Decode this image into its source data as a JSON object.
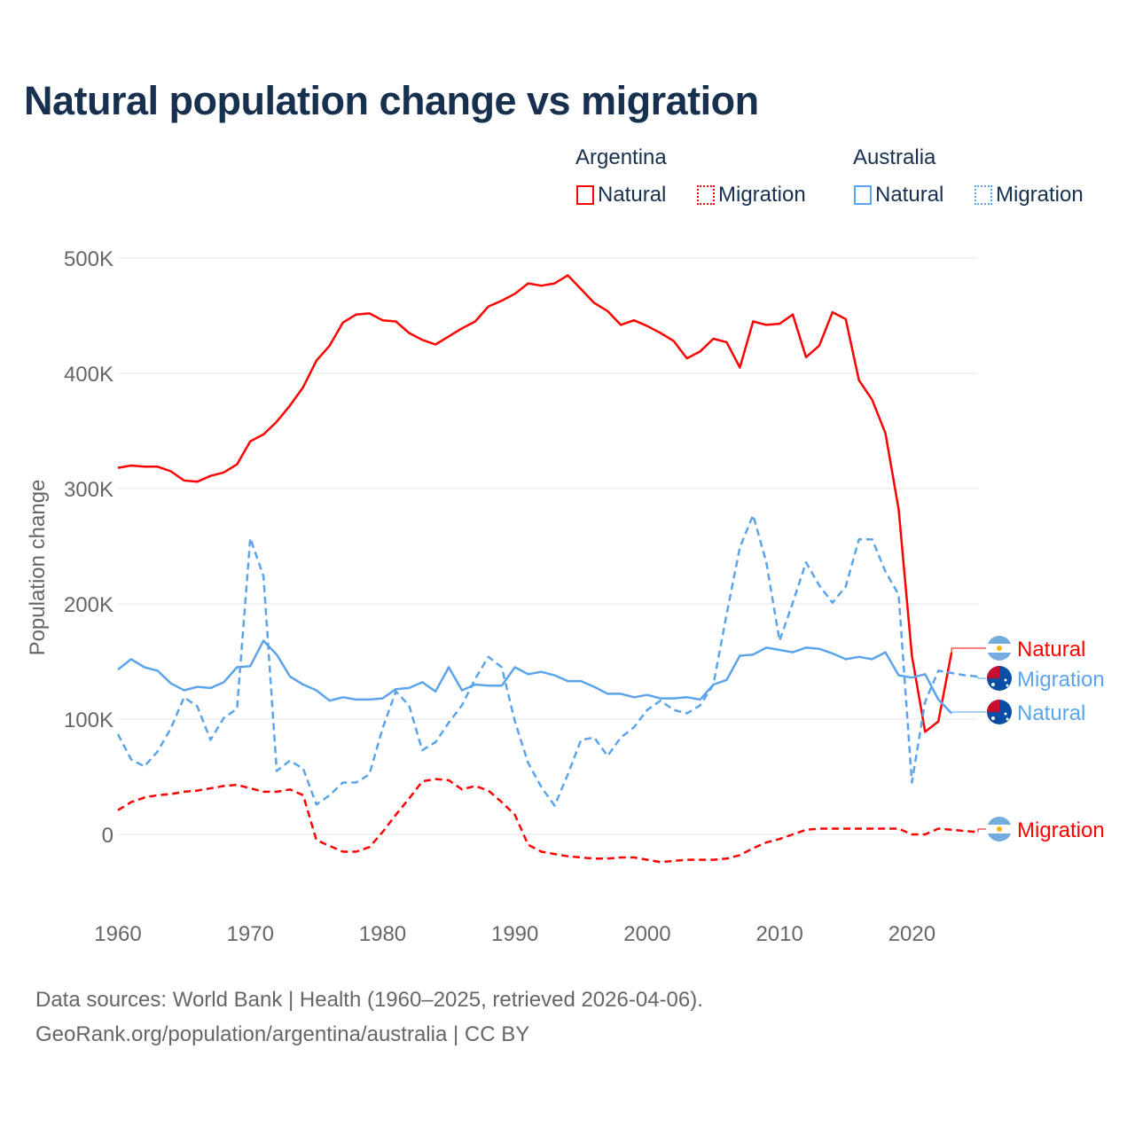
{
  "title": "Natural population change vs migration",
  "legend": {
    "groups": [
      {
        "name": "Argentina",
        "items": [
          "Natural",
          "Migration"
        ]
      },
      {
        "name": "Australia",
        "items": [
          "Natural",
          "Migration"
        ]
      }
    ]
  },
  "colors": {
    "argentina": "#ff0000",
    "australia": "#5ba4ec",
    "grid": "#e6e6e6",
    "axis_text": "#666666",
    "title": "#17304f"
  },
  "footer": {
    "line1": "Data sources: World Bank | Health (1960–2025, retrieved 2026-04-06).",
    "line2": "GeoRank.org/population/argentina/australia | CC BY"
  },
  "chart_data": {
    "type": "line",
    "title": "Natural population change vs migration",
    "xlabel": "",
    "ylabel": "Population change",
    "xlim": [
      1960,
      2025
    ],
    "ylim": [
      -75000,
      500000
    ],
    "x_ticks": [
      1960,
      1970,
      1980,
      1990,
      2000,
      2010,
      2020
    ],
    "x_tick_labels": [
      "1960",
      "1970",
      "1980",
      "1990",
      "2000",
      "2010",
      "2020"
    ],
    "y_ticks": [
      0,
      100000,
      200000,
      300000,
      400000,
      500000
    ],
    "y_tick_labels": [
      "0",
      "100K",
      "200K",
      "300K",
      "400K",
      "500K"
    ],
    "grid": true,
    "legend_position": "top-right",
    "series": [
      {
        "name": "Argentina Natural",
        "label": "Natural",
        "country": "argentina",
        "style": "solid",
        "start": 1960,
        "values": [
          318,
          320,
          319,
          319,
          315,
          307,
          306,
          311,
          314,
          321,
          341,
          347,
          358,
          372,
          388,
          411,
          424,
          444,
          451,
          452,
          446,
          445,
          435,
          429,
          425,
          432,
          439,
          445,
          458,
          463,
          469,
          478,
          476,
          478,
          485,
          473,
          461,
          454,
          442,
          446,
          441,
          435,
          428,
          413,
          419,
          430,
          427,
          405,
          445,
          442,
          443,
          451,
          414,
          424,
          453,
          447,
          394,
          377,
          348,
          282,
          155,
          89,
          98,
          158
        ]
      },
      {
        "name": "Argentina Migration",
        "label": "Migration",
        "country": "argentina",
        "style": "dashed",
        "start": 1960,
        "values": [
          21,
          28,
          32,
          34,
          35,
          37,
          38,
          40,
          42,
          43,
          40,
          37,
          37,
          39,
          34,
          -5,
          -10,
          -15,
          -15,
          -11,
          2,
          17,
          31,
          46,
          48,
          47,
          39,
          42,
          38,
          28,
          17,
          -9,
          -15,
          -17,
          -19,
          -20,
          -21,
          -21,
          -20,
          -20,
          -22,
          -24,
          -23,
          -22,
          -22,
          -22,
          -21,
          -18,
          -12,
          -7,
          -4,
          0,
          4,
          5,
          5,
          5,
          5,
          5,
          5,
          5,
          0,
          0,
          5,
          4,
          3,
          2
        ]
      },
      {
        "name": "Australia Natural",
        "label": "Natural",
        "country": "australia",
        "style": "solid",
        "start": 1960,
        "values": [
          143,
          152,
          145,
          142,
          131,
          125,
          128,
          127,
          132,
          145,
          146,
          168,
          156,
          137,
          130,
          125,
          116,
          119,
          117,
          117,
          118,
          126,
          127,
          132,
          124,
          145,
          125,
          130,
          129,
          129,
          145,
          139,
          141,
          138,
          133,
          133,
          128,
          122,
          122,
          119,
          121,
          118,
          118,
          119,
          117,
          130,
          134,
          155,
          156,
          162,
          160,
          158,
          162,
          161,
          157,
          152,
          154,
          152,
          158,
          138,
          136,
          139,
          117,
          105
        ]
      },
      {
        "name": "Australia Migration",
        "label": "Migration",
        "country": "australia",
        "style": "dashed",
        "start": 1960,
        "values": [
          87,
          65,
          59,
          72,
          92,
          119,
          111,
          82,
          101,
          109,
          257,
          224,
          55,
          64,
          57,
          26,
          34,
          45,
          45,
          52,
          92,
          124,
          112,
          73,
          80,
          97,
          112,
          135,
          154,
          145,
          98,
          62,
          41,
          25,
          52,
          82,
          84,
          68,
          84,
          93,
          108,
          116,
          108,
          105,
          112,
          130,
          191,
          249,
          277,
          236,
          168,
          201,
          236,
          216,
          201,
          215,
          256,
          256,
          228,
          208,
          45,
          115,
          142,
          140,
          138,
          137
        ]
      }
    ],
    "value_unit": "thousands",
    "end_labels": [
      "Natural",
      "Migration",
      "Natural",
      "Migration"
    ]
  }
}
